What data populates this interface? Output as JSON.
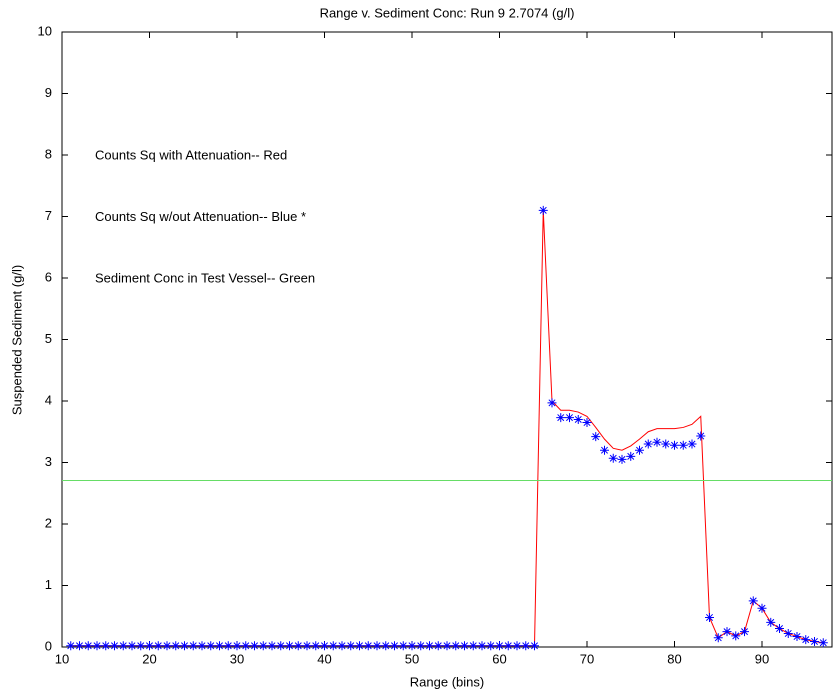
{
  "chart_data": {
    "type": "line",
    "title": "Range v. Sediment Conc: Run 9    2.7074 (g/l)",
    "xlabel": "Range (bins)",
    "ylabel": "Suspended Sediment (g/l)",
    "annotations": [
      "Counts Sq with Attenuation-- Red",
      "Counts Sq w/out Attenuation-- Blue *",
      "Sediment Conc in Test Vessel-- Green"
    ],
    "xlim": [
      10,
      98
    ],
    "ylim": [
      0,
      10
    ],
    "xticks": [
      10,
      20,
      30,
      40,
      50,
      60,
      70,
      80,
      90
    ],
    "yticks": [
      0,
      1,
      2,
      3,
      4,
      5,
      6,
      7,
      8,
      9,
      10
    ],
    "series": [
      {
        "color": "#ff0000",
        "marker": "none",
        "x": [
          11,
          12,
          13,
          14,
          15,
          16,
          17,
          18,
          19,
          20,
          21,
          22,
          23,
          24,
          25,
          26,
          27,
          28,
          29,
          30,
          31,
          32,
          33,
          34,
          35,
          36,
          37,
          38,
          39,
          40,
          41,
          42,
          43,
          44,
          45,
          46,
          47,
          48,
          49,
          50,
          51,
          52,
          53,
          54,
          55,
          56,
          57,
          58,
          59,
          60,
          61,
          62,
          63,
          64,
          65,
          66,
          67,
          68,
          69,
          70,
          71,
          72,
          73,
          74,
          75,
          76,
          77,
          78,
          79,
          80,
          81,
          82,
          83,
          84,
          85,
          86,
          87,
          88,
          89,
          90,
          91,
          92,
          93,
          94,
          95,
          96,
          97
        ],
        "values": [
          0.02,
          0.02,
          0.02,
          0.02,
          0.02,
          0.02,
          0.02,
          0.02,
          0.02,
          0.02,
          0.02,
          0.02,
          0.02,
          0.02,
          0.02,
          0.02,
          0.02,
          0.02,
          0.02,
          0.02,
          0.02,
          0.02,
          0.02,
          0.02,
          0.02,
          0.02,
          0.02,
          0.02,
          0.02,
          0.02,
          0.02,
          0.02,
          0.02,
          0.02,
          0.02,
          0.02,
          0.02,
          0.02,
          0.02,
          0.02,
          0.02,
          0.02,
          0.02,
          0.02,
          0.02,
          0.02,
          0.02,
          0.02,
          0.02,
          0.02,
          0.02,
          0.02,
          0.02,
          0.02,
          7.1,
          4.0,
          3.85,
          3.85,
          3.82,
          3.75,
          3.57,
          3.38,
          3.23,
          3.2,
          3.27,
          3.38,
          3.5,
          3.55,
          3.55,
          3.55,
          3.57,
          3.62,
          3.75,
          0.48,
          0.15,
          0.25,
          0.18,
          0.25,
          0.75,
          0.63,
          0.4,
          0.3,
          0.22,
          0.17,
          0.12,
          0.09,
          0.07
        ]
      },
      {
        "color": "#0000ff",
        "marker": "star",
        "x": [
          11,
          12,
          13,
          14,
          15,
          16,
          17,
          18,
          19,
          20,
          21,
          22,
          23,
          24,
          25,
          26,
          27,
          28,
          29,
          30,
          31,
          32,
          33,
          34,
          35,
          36,
          37,
          38,
          39,
          40,
          41,
          42,
          43,
          44,
          45,
          46,
          47,
          48,
          49,
          50,
          51,
          52,
          53,
          54,
          55,
          56,
          57,
          58,
          59,
          60,
          61,
          62,
          63,
          64,
          65,
          66,
          67,
          68,
          69,
          70,
          71,
          72,
          73,
          74,
          75,
          76,
          77,
          78,
          79,
          80,
          81,
          82,
          83,
          84,
          85,
          86,
          87,
          88,
          89,
          90,
          91,
          92,
          93,
          94,
          95,
          96,
          97
        ],
        "values": [
          0.02,
          0.02,
          0.02,
          0.02,
          0.02,
          0.02,
          0.02,
          0.02,
          0.02,
          0.02,
          0.02,
          0.02,
          0.02,
          0.02,
          0.02,
          0.02,
          0.02,
          0.02,
          0.02,
          0.02,
          0.02,
          0.02,
          0.02,
          0.02,
          0.02,
          0.02,
          0.02,
          0.02,
          0.02,
          0.02,
          0.02,
          0.02,
          0.02,
          0.02,
          0.02,
          0.02,
          0.02,
          0.02,
          0.02,
          0.02,
          0.02,
          0.02,
          0.02,
          0.02,
          0.02,
          0.02,
          0.02,
          0.02,
          0.02,
          0.02,
          0.02,
          0.02,
          0.02,
          0.02,
          7.1,
          3.97,
          3.73,
          3.73,
          3.7,
          3.65,
          3.42,
          3.2,
          3.07,
          3.05,
          3.1,
          3.2,
          3.3,
          3.33,
          3.3,
          3.28,
          3.28,
          3.3,
          3.43,
          0.48,
          0.15,
          0.25,
          0.18,
          0.25,
          0.75,
          0.63,
          0.4,
          0.3,
          0.22,
          0.17,
          0.12,
          0.09,
          0.07
        ]
      },
      {
        "color": "#66dd66",
        "marker": "none",
        "x": [
          10,
          98
        ],
        "values": [
          2.7074,
          2.7074
        ]
      }
    ]
  }
}
